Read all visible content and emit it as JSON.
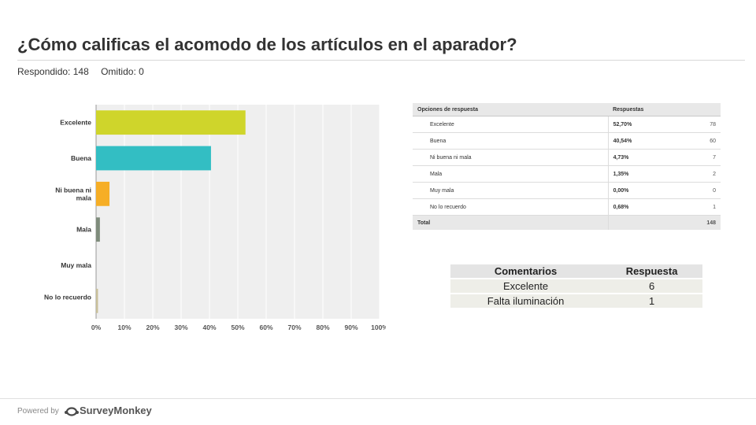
{
  "title": "¿Cómo calificas el acomodo de los artículos en el aparador?",
  "answered": "Respondido: 148",
  "skipped": "Omitido: 0",
  "chart_data": {
    "type": "bar",
    "orientation": "horizontal",
    "categories": [
      "Excelente",
      "Buena",
      "Ni buena ni mala",
      "Mala",
      "Muy mala",
      "No lo recuerdo"
    ],
    "values": [
      52.7,
      40.54,
      4.73,
      1.35,
      0.0,
      0.68
    ],
    "colors": [
      "#cfd52b",
      "#33bec3",
      "#f6ae26",
      "#7f8c7c",
      "#a08a4f",
      "#c9c09a"
    ],
    "xlim": [
      0,
      100
    ],
    "xticks": [
      "0%",
      "10%",
      "20%",
      "30%",
      "40%",
      "50%",
      "60%",
      "70%",
      "80%",
      "90%",
      "100%"
    ],
    "plot_background": "#efefef",
    "grid": true
  },
  "responses_table": {
    "header_option": "Opciones de respuesta",
    "header_responses": "Respuestas",
    "rows": [
      {
        "option": "Excelente",
        "percent": "52,70%",
        "count": "78"
      },
      {
        "option": "Buena",
        "percent": "40,54%",
        "count": "60"
      },
      {
        "option": "Ni buena ni mala",
        "percent": "4,73%",
        "count": "7"
      },
      {
        "option": "Mala",
        "percent": "1,35%",
        "count": "2"
      },
      {
        "option": "Muy mala",
        "percent": "0,00%",
        "count": "0"
      },
      {
        "option": "No lo recuerdo",
        "percent": "0,68%",
        "count": "1"
      }
    ],
    "total_label": "Total",
    "total_count": "148"
  },
  "comments_table": {
    "header_comment": "Comentarios",
    "header_response": "Respuesta",
    "rows": [
      {
        "comment": "Excelente",
        "response": "6"
      },
      {
        "comment": "Falta iluminación",
        "response": "1"
      }
    ]
  },
  "footer": {
    "powered_by": "Powered by",
    "brand": "SurveyMonkey",
    "brand_color": "#4a4a4a"
  }
}
